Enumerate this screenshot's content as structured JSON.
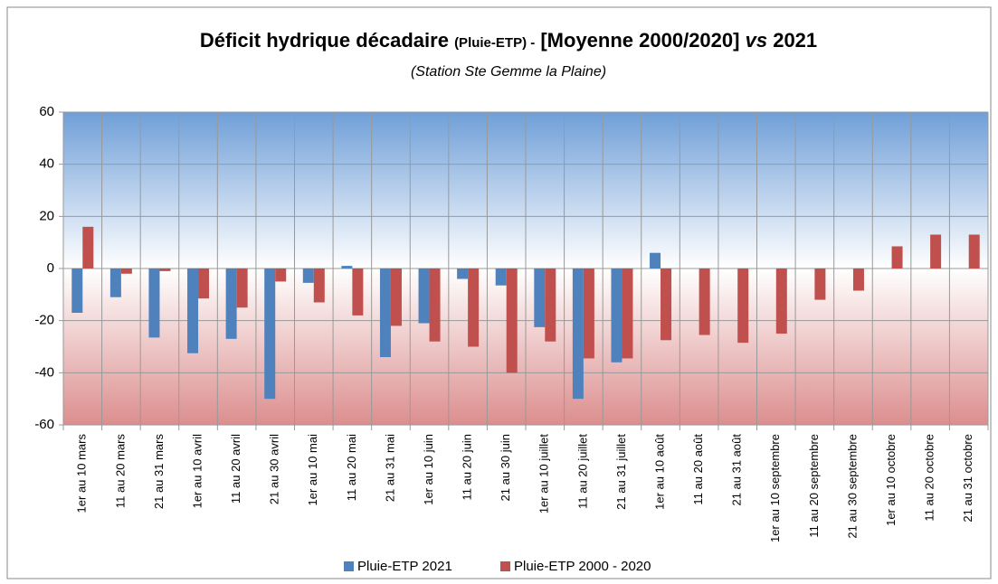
{
  "chart_data": {
    "type": "bar",
    "title_parts": [
      "Déficit hydrique décadaire",
      "(Pluie-ETP) -",
      "[Moyenne 2000/2020]",
      "vs",
      "2021"
    ],
    "subtitle": "(Station Ste Gemme la Plaine)",
    "categories": [
      "1er au 10 mars",
      "11 au 20 mars",
      "21 au 31 mars",
      "1er au 10 avril",
      "11 au 20 avril",
      "21 au 30 avril",
      "1er au 10 mai",
      "11 au 20 mai",
      "21 au 31 mai",
      "1er au 10 juin",
      "11 au 20 juin",
      "21 au 30 juin",
      "1er au 10 juillet",
      "11 au 20 juillet",
      "21 au 31 juillet",
      "1er au 10 août",
      "11 au 20 août",
      "21 au 31 août",
      "1er au 10  septembre",
      "11 au 20 septembre",
      "21 au 30 septembre",
      "1er au 10 octobre",
      "11 au 20 octobre",
      "21 au 31 octobre"
    ],
    "series": [
      {
        "name": "Pluie-ETP 2021",
        "color": "#4f81bd",
        "values": [
          -17,
          -11,
          -26.5,
          -32.5,
          -27,
          -50,
          -5.5,
          1,
          -34,
          -21,
          -4,
          -6.5,
          -22.5,
          -50,
          -36,
          6,
          null,
          null,
          null,
          null,
          null,
          null,
          null,
          null
        ]
      },
      {
        "name": "Pluie-ETP 2000 - 2020",
        "color": "#c0504d",
        "values": [
          16,
          -2,
          -1,
          -11.5,
          -15,
          -5,
          -13,
          -18,
          -22,
          -28,
          -30,
          -40,
          -28,
          -34.5,
          -34.5,
          -27.5,
          -25.5,
          -28.5,
          -25,
          -12,
          -8.5,
          8.5,
          13,
          13
        ]
      }
    ],
    "ylim": [
      -60,
      60
    ],
    "yticks": [
      -60,
      -40,
      -20,
      0,
      20,
      40,
      60
    ],
    "grid": true,
    "legend": "bottom"
  }
}
